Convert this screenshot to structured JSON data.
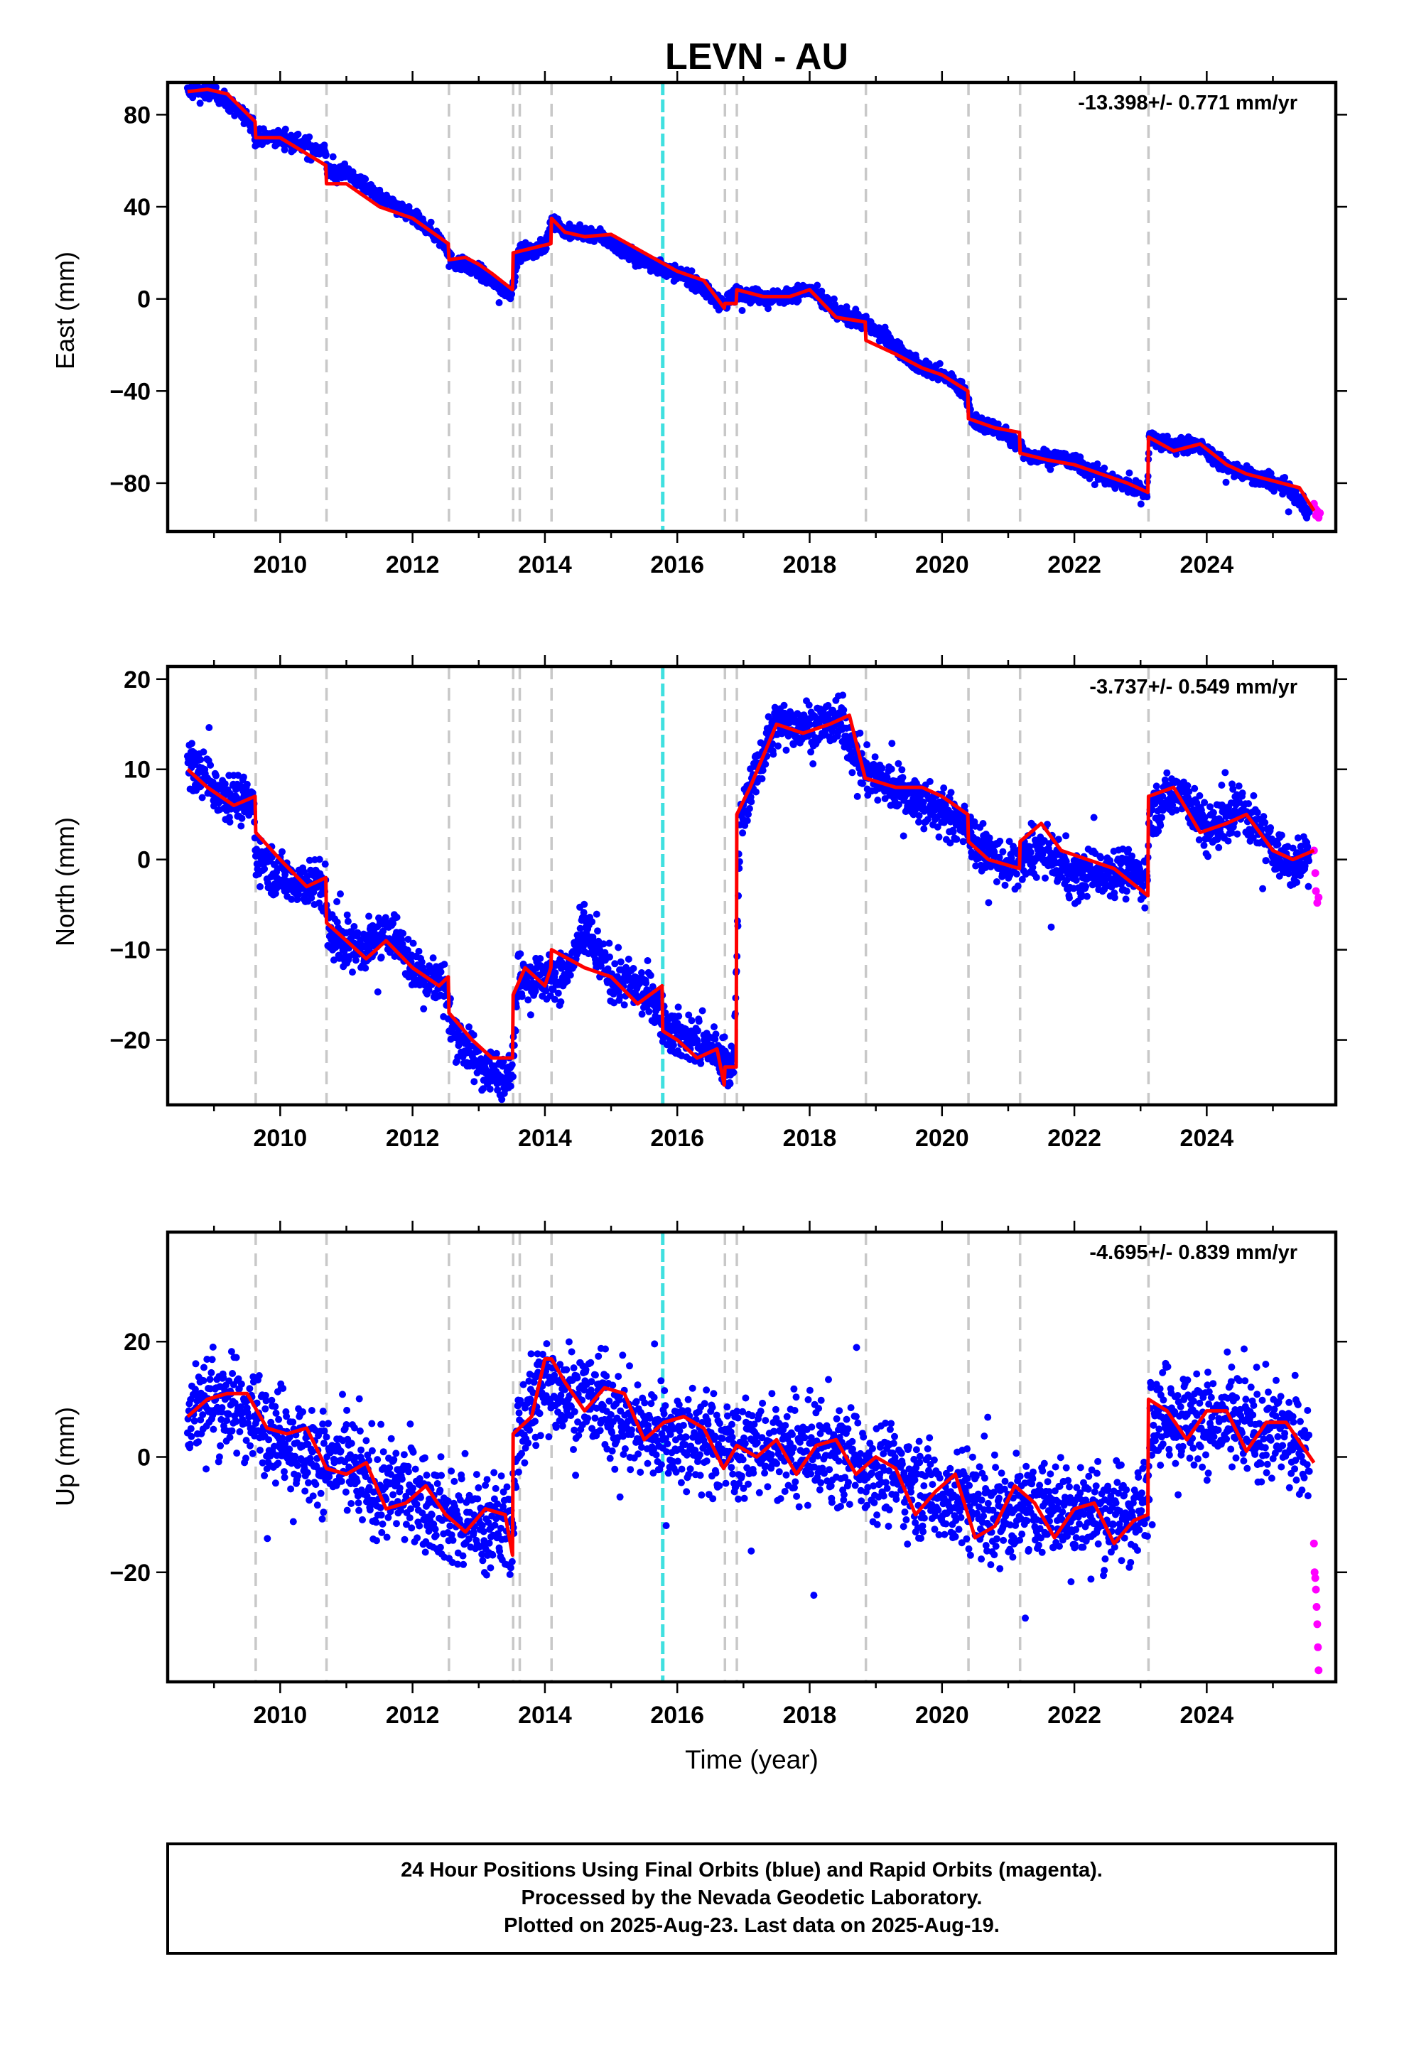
{
  "title": "LEVN - AU",
  "x_axis_label": "Time (year)",
  "footer": [
    "24 Hour Positions Using Final Orbits (blue) and Rapid Orbits (magenta).",
    "Processed by the Nevada Geodetic Laboratory.",
    "Plotted on 2025-Aug-23. Last data on 2025-Aug-19."
  ],
  "colors": {
    "final": "#0000ff",
    "rapid": "#ff00ff",
    "model": "#ff0000",
    "offset": "#c8c8c8",
    "equipment": "#40e0e0"
  },
  "chart_data": [
    {
      "type": "scatter",
      "component": "east",
      "ylabel": "East (mm)",
      "rate_label": "-13.398+/- 0.771 mm/yr",
      "xlim": [
        2008.3,
        2025.95
      ],
      "ylim": [
        -101,
        94
      ],
      "xticks": [
        2010,
        2012,
        2014,
        2016,
        2018,
        2020,
        2022,
        2024
      ],
      "yticks": [
        -80,
        -40,
        0,
        40,
        80
      ],
      "offsets": [
        2009.63,
        2010.7,
        2012.55,
        2013.52,
        2013.62,
        2014.1,
        2016.72,
        2016.9,
        2018.85,
        2020.4,
        2021.18,
        2023.12
      ],
      "equipment_change": [
        2015.78
      ],
      "noise": 1.6,
      "series": [
        {
          "name": "final",
          "x": [
            2008.6,
            2009.0,
            2009.6,
            2009.62,
            2010.0,
            2010.68,
            2010.72,
            2011.0,
            2011.5,
            2012.0,
            2012.5,
            2012.55,
            2013.0,
            2013.3,
            2013.5,
            2013.6,
            2014.0,
            2014.1,
            2014.3,
            2014.8,
            2015.3,
            2015.8,
            2016.2,
            2016.7,
            2016.9,
            2017.2,
            2017.6,
            2018.0,
            2018.4,
            2018.8,
            2019.2,
            2019.6,
            2020.0,
            2020.35,
            2020.45,
            2020.8,
            2021.15,
            2021.3,
            2021.8,
            2022.2,
            2022.6,
            2023.1,
            2023.13,
            2023.5,
            2023.85,
            2024.3,
            2024.8,
            2025.2,
            2025.55
          ],
          "y": [
            90,
            90,
            76,
            70,
            70,
            64,
            55,
            55,
            44,
            36,
            24,
            17,
            12,
            5,
            3,
            20,
            22,
            35,
            29,
            28,
            19,
            13,
            9,
            -3,
            3,
            1,
            1,
            4,
            -6,
            -10,
            -18,
            -28,
            -33,
            -40,
            -53,
            -56,
            -63,
            -68,
            -69,
            -74,
            -79,
            -84,
            -60,
            -64,
            -63,
            -73,
            -78,
            -82,
            -93
          ]
        },
        {
          "name": "rapid",
          "x": [
            2025.62,
            2025.64,
            2025.65,
            2025.67,
            2025.69,
            2025.71
          ],
          "y": [
            -89,
            -91,
            -94,
            -92,
            -95,
            -93
          ]
        }
      ],
      "model": {
        "x": [
          2008.6,
          2008.9,
          2009.2,
          2009.62,
          2009.63,
          2010.0,
          2010.69,
          2010.7,
          2011.0,
          2011.5,
          2012.0,
          2012.54,
          2012.55,
          2012.8,
          2013.0,
          2013.2,
          2013.51,
          2013.52,
          2013.8,
          2014.09,
          2014.1,
          2014.3,
          2014.6,
          2015.0,
          2015.5,
          2016.0,
          2016.4,
          2016.71,
          2016.72,
          2016.89,
          2016.9,
          2017.3,
          2017.7,
          2018.0,
          2018.4,
          2018.84,
          2018.85,
          2019.3,
          2019.7,
          2020.0,
          2020.39,
          2020.4,
          2020.8,
          2021.17,
          2021.18,
          2021.6,
          2022.0,
          2022.4,
          2022.8,
          2023.11,
          2023.12,
          2023.5,
          2023.9,
          2024.3,
          2024.6,
          2025.0,
          2025.4,
          2025.62
        ],
        "y": [
          90,
          91,
          89,
          77,
          70,
          70,
          58,
          50,
          50,
          40,
          35,
          24,
          17,
          18,
          15,
          11,
          4,
          20,
          22,
          24,
          35,
          29,
          27,
          28,
          20,
          12,
          8,
          -4,
          -2,
          -2,
          4,
          1,
          1,
          4,
          -8,
          -10,
          -18,
          -24,
          -30,
          -33,
          -40,
          -52,
          -56,
          -58,
          -67,
          -70,
          -72,
          -76,
          -80,
          -84,
          -60,
          -66,
          -63,
          -72,
          -76,
          -79,
          -82,
          -92
        ]
      }
    },
    {
      "type": "scatter",
      "component": "north",
      "ylabel": "North (mm)",
      "rate_label": "-3.737+/- 0.549 mm/yr",
      "xlim": [
        2008.3,
        2025.95
      ],
      "ylim": [
        -27.2,
        21.4
      ],
      "xticks": [
        2010,
        2012,
        2014,
        2016,
        2018,
        2020,
        2022,
        2024
      ],
      "yticks": [
        -20,
        -10,
        0,
        10,
        20
      ],
      "offsets": [
        2009.63,
        2010.7,
        2012.55,
        2013.52,
        2013.62,
        2014.1,
        2016.72,
        2016.9,
        2018.85,
        2020.4,
        2021.18,
        2023.12
      ],
      "equipment_change": [
        2015.78
      ],
      "noise": 1.3,
      "series": [
        {
          "name": "final",
          "x": [
            2008.6,
            2009.0,
            2009.6,
            2009.62,
            2010.0,
            2010.68,
            2010.72,
            2011.2,
            2011.7,
            2012.0,
            2012.5,
            2012.55,
            2012.9,
            2013.3,
            2013.5,
            2013.6,
            2014.0,
            2014.3,
            2014.6,
            2015.0,
            2015.6,
            2015.9,
            2016.3,
            2016.7,
            2016.85,
            2016.95,
            2017.1,
            2017.5,
            2018.0,
            2018.5,
            2018.8,
            2019.3,
            2019.8,
            2020.3,
            2020.5,
            2021.0,
            2021.5,
            2022.0,
            2022.5,
            2023.1,
            2023.13,
            2023.6,
            2024.0,
            2024.5,
            2024.9,
            2025.3,
            2025.55
          ],
          "y": [
            11,
            8,
            6,
            1,
            -2,
            -3,
            -8,
            -10,
            -8,
            -12,
            -14,
            -18,
            -22,
            -24,
            -23,
            -13,
            -13,
            -13,
            -8,
            -13,
            -15,
            -19,
            -20,
            -22,
            -24,
            4,
            8,
            15,
            15,
            15,
            10,
            8,
            6,
            4,
            2,
            -1,
            1,
            -2,
            -1,
            -2,
            5,
            8,
            3,
            6,
            2,
            -1,
            1
          ]
        },
        {
          "name": "rapid",
          "x": [
            2025.62,
            2025.64,
            2025.65,
            2025.67,
            2025.69
          ],
          "y": [
            1.0,
            -1.5,
            -3.5,
            -4.8,
            -4.2
          ]
        }
      ],
      "model": {
        "x": [
          2008.6,
          2008.9,
          2009.3,
          2009.62,
          2009.63,
          2010.0,
          2010.4,
          2010.69,
          2010.7,
          2011.0,
          2011.3,
          2011.6,
          2012.0,
          2012.4,
          2012.54,
          2012.55,
          2012.9,
          2013.2,
          2013.51,
          2013.52,
          2013.7,
          2014.0,
          2014.09,
          2014.1,
          2014.6,
          2015.0,
          2015.4,
          2015.77,
          2015.78,
          2016.0,
          2016.3,
          2016.6,
          2016.71,
          2016.72,
          2016.89,
          2016.9,
          2017.1,
          2017.5,
          2017.9,
          2018.3,
          2018.6,
          2018.84,
          2018.85,
          2019.3,
          2019.7,
          2020.0,
          2020.39,
          2020.4,
          2020.7,
          2021.17,
          2021.18,
          2021.5,
          2021.8,
          2022.2,
          2022.6,
          2023.11,
          2023.12,
          2023.5,
          2023.9,
          2024.3,
          2024.6,
          2025.0,
          2025.3,
          2025.62
        ],
        "y": [
          10,
          8,
          6,
          7,
          3,
          0,
          -3,
          -2,
          -7,
          -9,
          -11,
          -9,
          -12,
          -14,
          -13,
          -17,
          -20,
          -22,
          -22,
          -15,
          -12,
          -14,
          -12,
          -10,
          -12,
          -13,
          -16,
          -14,
          -19,
          -20,
          -22,
          -21,
          -25,
          -23,
          -23,
          5,
          8,
          15,
          14,
          15,
          16,
          9,
          9,
          8,
          8,
          7,
          5,
          2,
          0,
          -1,
          2,
          4,
          1,
          0,
          -1,
          -4,
          7,
          8,
          3,
          4,
          5,
          1,
          0,
          1
        ]
      }
    },
    {
      "type": "scatter",
      "component": "up",
      "ylabel": "Up (mm)",
      "rate_label": "-4.695+/- 0.839 mm/yr",
      "xlim": [
        2008.3,
        2025.95
      ],
      "ylim": [
        -39,
        39
      ],
      "xticks": [
        2010,
        2012,
        2014,
        2016,
        2018,
        2020,
        2022,
        2024
      ],
      "yticks": [
        -20,
        0,
        20
      ],
      "offsets": [
        2009.63,
        2010.7,
        2012.55,
        2013.52,
        2013.62,
        2014.1,
        2016.72,
        2016.9,
        2018.85,
        2020.4,
        2021.18,
        2023.12
      ],
      "equipment_change": [
        2015.78
      ],
      "noise": 4.2,
      "series": [
        {
          "name": "final",
          "x": [
            2008.6,
            2009.0,
            2009.5,
            2010.0,
            2010.5,
            2011.0,
            2011.5,
            2012.0,
            2012.5,
            2013.0,
            2013.5,
            2013.6,
            2014.0,
            2014.3,
            2014.8,
            2015.3,
            2015.8,
            2016.3,
            2016.8,
            2017.3,
            2017.8,
            2018.3,
            2018.8,
            2019.3,
            2019.8,
            2020.4,
            2020.9,
            2021.4,
            2021.9,
            2022.4,
            2022.9,
            2023.1,
            2023.15,
            2023.6,
            2024.1,
            2024.6,
            2025.1,
            2025.55
          ],
          "y": [
            8,
            10,
            8,
            4,
            0,
            -2,
            -6,
            -6,
            -10,
            -12,
            -12,
            4,
            13,
            12,
            9,
            6,
            4,
            3,
            1,
            2,
            0,
            1,
            -1,
            -3,
            -6,
            -8,
            -10,
            -9,
            -9,
            -10,
            -10,
            -8,
            8,
            7,
            6,
            5,
            4,
            1
          ]
        },
        {
          "name": "rapid",
          "x": [
            2025.62,
            2025.63,
            2025.64,
            2025.65,
            2025.66,
            2025.67,
            2025.68,
            2025.69
          ],
          "y": [
            -15,
            -20,
            -21,
            -23,
            -26,
            -29,
            -33,
            -37
          ]
        }
      ],
      "model": {
        "x": [
          2008.6,
          2008.9,
          2009.2,
          2009.5,
          2009.8,
          2010.1,
          2010.4,
          2010.7,
          2011.0,
          2011.3,
          2011.6,
          2011.9,
          2012.2,
          2012.5,
          2012.8,
          2013.1,
          2013.4,
          2013.51,
          2013.52,
          2013.8,
          2014.0,
          2014.1,
          2014.3,
          2014.6,
          2014.9,
          2015.2,
          2015.5,
          2015.8,
          2016.1,
          2016.4,
          2016.7,
          2016.9,
          2017.2,
          2017.5,
          2017.8,
          2018.1,
          2018.4,
          2018.7,
          2019.0,
          2019.3,
          2019.6,
          2019.9,
          2020.2,
          2020.5,
          2020.8,
          2021.1,
          2021.4,
          2021.7,
          2022.0,
          2022.3,
          2022.6,
          2022.9,
          2023.11,
          2023.12,
          2023.4,
          2023.7,
          2024.0,
          2024.3,
          2024.6,
          2024.9,
          2025.2,
          2025.62
        ],
        "y": [
          7,
          10,
          11,
          11,
          5,
          4,
          5,
          -2,
          -3,
          -1,
          -9,
          -8,
          -5,
          -10,
          -13,
          -9,
          -10,
          -17,
          4,
          7,
          17,
          17,
          13,
          8,
          12,
          11,
          3,
          6,
          7,
          5,
          -2,
          2,
          0,
          3,
          -3,
          2,
          3,
          -3,
          0,
          -2,
          -10,
          -6,
          -3,
          -14,
          -12,
          -5,
          -8,
          -14,
          -9,
          -8,
          -15,
          -11,
          -10,
          10,
          8,
          3,
          8,
          8,
          1,
          6,
          6,
          -1
        ]
      }
    }
  ]
}
